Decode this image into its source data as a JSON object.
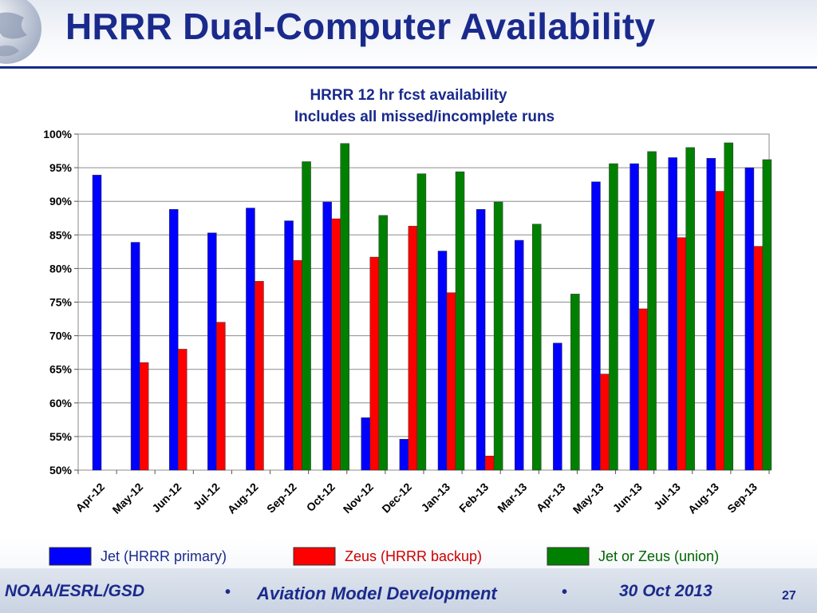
{
  "slide": {
    "title": "HRRR Dual-Computer Availability",
    "footer_left": "NOAA/ESRL/GSD",
    "footer_center": "Aviation Model Development",
    "footer_date": "30 Oct 2013",
    "bullet": "•",
    "page_number": "27",
    "title_color": "#1a2a8c"
  },
  "chart_data": {
    "type": "bar",
    "title": "HRRR 12 hr fcst availability",
    "subtitle": "Includes all missed/incomplete runs",
    "xlabel": "",
    "ylabel": "",
    "ylim": [
      50,
      100
    ],
    "yticks": [
      50,
      55,
      60,
      65,
      70,
      75,
      80,
      85,
      90,
      95,
      100
    ],
    "ytick_suffix": "%",
    "grid": true,
    "legend_position": "bottom",
    "categories": [
      "Apr-12",
      "May-12",
      "Jun-12",
      "Jul-12",
      "Aug-12",
      "Sep-12",
      "Oct-12",
      "Nov-12",
      "Dec-12",
      "Jan-13",
      "Feb-13",
      "Mar-13",
      "Apr-13",
      "May-13",
      "Jun-13",
      "Jul-13",
      "Aug-13",
      "Sep-13"
    ],
    "series": [
      {
        "name": "Jet (HRRR primary)",
        "color": "#0000ff",
        "values": [
          93.9,
          83.9,
          88.8,
          85.3,
          89.0,
          87.1,
          89.9,
          57.8,
          54.6,
          82.6,
          88.8,
          84.2,
          68.9,
          92.9,
          95.6,
          96.5,
          96.4,
          95.0
        ]
      },
      {
        "name": "Zeus (HRRR backup)",
        "color": "#ff0000",
        "values": [
          null,
          66.0,
          68.0,
          72.0,
          78.1,
          81.2,
          87.4,
          81.7,
          86.3,
          76.4,
          52.1,
          null,
          null,
          64.3,
          74.0,
          84.6,
          91.5,
          83.3
        ]
      },
      {
        "name": "Jet or Zeus (union)",
        "color": "#008000",
        "values": [
          null,
          null,
          null,
          null,
          null,
          95.9,
          98.6,
          87.9,
          94.1,
          94.4,
          89.9,
          86.6,
          76.2,
          95.6,
          97.4,
          98.0,
          98.7,
          96.2
        ]
      }
    ]
  }
}
